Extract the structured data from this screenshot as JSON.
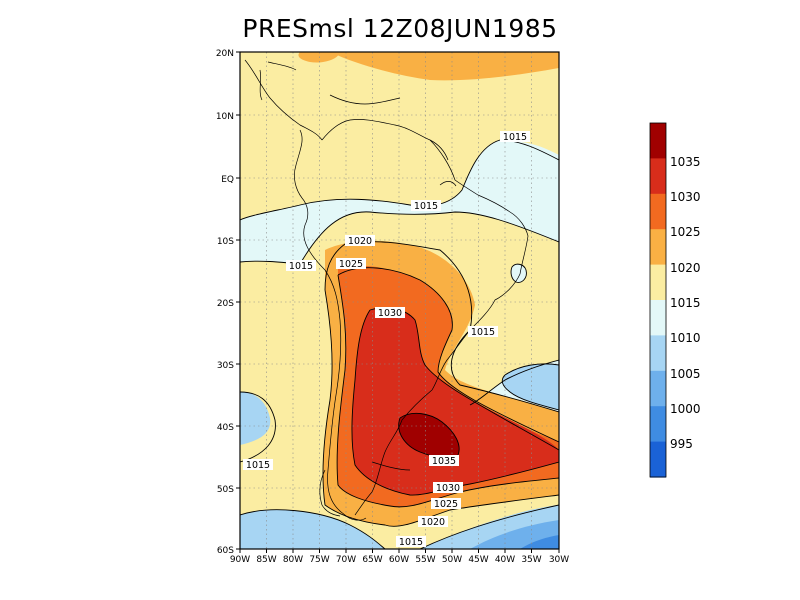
{
  "title": "PRESmsl  12Z08JUN1985",
  "lat_labels": [
    "20N",
    "10N",
    "EQ",
    "10S",
    "20S",
    "30S",
    "40S",
    "50S",
    "60S"
  ],
  "lon_labels": [
    "90W",
    "85W",
    "80W",
    "75W",
    "70W",
    "65W",
    "60W",
    "55W",
    "50W",
    "45W",
    "40W",
    "35W",
    "30W"
  ],
  "contour_labels": [
    "1015",
    "1015",
    "1015",
    "1020",
    "1025",
    "1030",
    "1015",
    "1015",
    "1035",
    "1030",
    "1025",
    "1020",
    "1015"
  ],
  "colorbar": {
    "labels": [
      "1035",
      "1030",
      "1025",
      "1020",
      "1015",
      "1010",
      "1005",
      "1000",
      "995"
    ],
    "colors": [
      "#a00000",
      "#d82d1b",
      "#f26a20",
      "#f9b044",
      "#fbeda2",
      "#e3f8f8",
      "#a7d5f3",
      "#6eb0ec",
      "#3f8ce2",
      "#1a62d6"
    ]
  }
}
